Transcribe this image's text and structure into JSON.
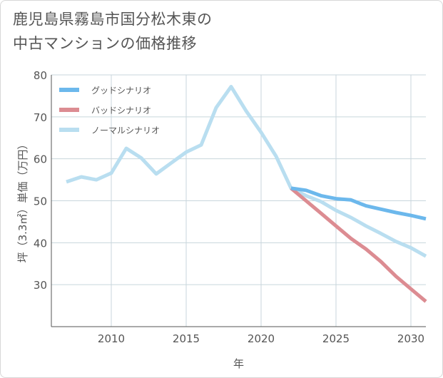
{
  "title_lines": [
    "鹿児島県霧島市国分松木東の",
    "中古マンションの価格推移"
  ],
  "chart_data": {
    "type": "line",
    "title": "鹿児島県霧島市国分松木東の中古マンションの価格推移",
    "xlabel": "年",
    "ylabel": "坪（3.3㎡）単価（万円）",
    "xlim": [
      2006,
      2031
    ],
    "ylim": [
      20,
      80
    ],
    "xticks": [
      2010,
      2015,
      2020,
      2025,
      2030
    ],
    "yticks": [
      30,
      40,
      50,
      60,
      70,
      80
    ],
    "grid": true,
    "legend_position": "top-left",
    "series": [
      {
        "name": "グッドシナリオ",
        "color": "#6cb8ec",
        "x": [
          2022,
          2023,
          2024,
          2025,
          2026,
          2027,
          2028,
          2029,
          2030,
          2031
        ],
        "values": [
          53.0,
          52.5,
          51.2,
          50.5,
          50.2,
          48.8,
          48.0,
          47.2,
          46.5,
          45.7
        ]
      },
      {
        "name": "バッドシナリオ",
        "color": "#dc8c92",
        "x": [
          2022,
          2023,
          2024,
          2025,
          2026,
          2027,
          2028,
          2029,
          2030,
          2031
        ],
        "values": [
          53.0,
          50.0,
          47.0,
          44.0,
          41.0,
          38.5,
          35.5,
          32.0,
          29.0,
          26.0
        ]
      },
      {
        "name": "ノーマルシナリオ",
        "color": "#b9def0",
        "x": [
          2007,
          2008,
          2009,
          2010,
          2011,
          2012,
          2013,
          2014,
          2015,
          2016,
          2017,
          2018,
          2019,
          2020,
          2021,
          2022,
          2023,
          2024,
          2025,
          2026,
          2027,
          2028,
          2029,
          2030,
          2031
        ],
        "values": [
          54.5,
          55.7,
          55.0,
          56.6,
          62.5,
          60.2,
          56.4,
          59.0,
          61.6,
          63.3,
          72.2,
          77.2,
          71.4,
          66.3,
          60.6,
          53.0,
          51.2,
          49.8,
          47.7,
          46.0,
          44.0,
          42.2,
          40.3,
          38.8,
          36.8
        ]
      }
    ]
  }
}
